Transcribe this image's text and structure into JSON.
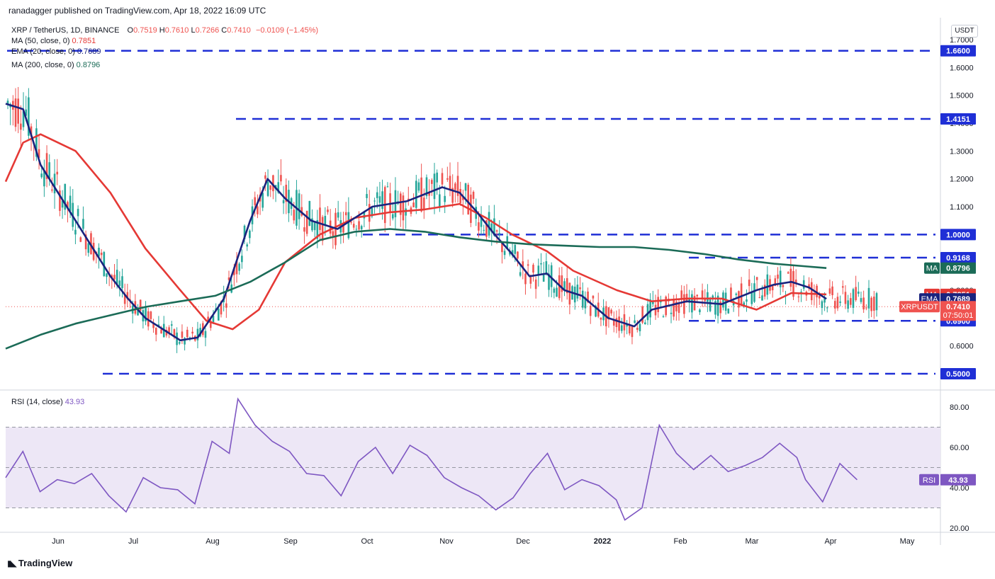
{
  "header": {
    "published": "ranadagger published on TradingView.com, Apr 18, 2022 16:09 UTC"
  },
  "legend": {
    "symbol": "XRP / TetherUS, 1D, BINANCE",
    "o_label": "O",
    "o_value": "0.7519",
    "h_label": "H",
    "h_value": "0.7610",
    "l_label": "L",
    "l_value": "0.7266",
    "c_label": "C",
    "c_value": "0.7410",
    "change": "−0.0109 (−1.45%)",
    "ma50_label": "MA (50, close, 0)",
    "ma50_value": "0.7851",
    "ema20_label": "EMA (20, close, 0)",
    "ema20_value": "0.7689",
    "ma200_label": "MA (200, close, 0)",
    "ma200_value": "0.8796",
    "rsi_label": "RSI (14, close)",
    "rsi_value": "43.93"
  },
  "currency_badge": "USDT",
  "footer": {
    "brand": "TradingView"
  },
  "colors": {
    "candle_up": "#26a69a",
    "candle_down": "#ef5350",
    "ema20": "#1a237e",
    "ma50": "#e53935",
    "ma200": "#1b6b57",
    "hline": "#1f2fd6",
    "rsi": "#7e57c2",
    "rsi_band": "#ede7f6"
  },
  "chart_data": [
    {
      "type": "candlestick",
      "title": "XRP / TetherUS, 1D, BINANCE",
      "x_tick_labels": [
        "Jun",
        "Jul",
        "Aug",
        "Sep",
        "Oct",
        "Nov",
        "Dec",
        "2022",
        "Feb",
        "Mar",
        "Apr",
        "May"
      ],
      "y_tick_labels": [
        "1.7000",
        "1.6000",
        "1.5000",
        "1.4000",
        "1.3000",
        "1.2000",
        "1.1000",
        "1.0000",
        "0.9000",
        "0.8000",
        "0.7000",
        "0.6000",
        "0.5000"
      ],
      "ylim": [
        0.45,
        1.73
      ],
      "scale": "linear",
      "grid": false,
      "ohlc_last": {
        "open": 0.7519,
        "high": 0.761,
        "low": 0.7266,
        "close": 0.741
      },
      "price_labels": [
        {
          "text": "1.6600",
          "value": 1.66,
          "kind": "level"
        },
        {
          "text": "1.4151",
          "value": 1.4151,
          "kind": "level"
        },
        {
          "text": "1.0000",
          "value": 1.0,
          "kind": "level"
        },
        {
          "text": "0.9168",
          "value": 0.9168,
          "kind": "level"
        },
        {
          "text": "0.6900",
          "value": 0.69,
          "kind": "level"
        },
        {
          "text": "0.5000",
          "value": 0.5,
          "kind": "level"
        },
        {
          "tag": "MA",
          "text": "0.8796",
          "value": 0.8796,
          "kind": "ma200"
        },
        {
          "tag": "MA",
          "text": "0.7851",
          "value": 0.7851,
          "kind": "ma50"
        },
        {
          "tag": "EMA",
          "text": "0.7689",
          "value": 0.7689,
          "kind": "ema20"
        },
        {
          "tag": "XRPUSDT",
          "text": "0.7410",
          "countdown": "07:50:01",
          "value": 0.741,
          "kind": "price"
        }
      ],
      "horizontal_levels": [
        {
          "value": 1.66,
          "from": "May 2021",
          "to": "May 2022"
        },
        {
          "value": 1.4151,
          "from": "Aug 2021",
          "to": "May 2022"
        },
        {
          "value": 1.0,
          "from": "Oct 2021",
          "to": "May 2022"
        },
        {
          "value": 0.9168,
          "from": "Feb 2022",
          "to": "May 2022"
        },
        {
          "value": 0.69,
          "from": "Feb 2022",
          "to": "May 2022"
        },
        {
          "value": 0.5,
          "from": "Jun 2021",
          "to": "May 2022"
        }
      ],
      "series": [
        {
          "name": "MA (50, close, 0)",
          "color": "#e53935",
          "last": 0.7851,
          "path": [
            [
              0,
              1.19
            ],
            [
              0.02,
              1.33
            ],
            [
              0.04,
              1.36
            ],
            [
              0.08,
              1.3
            ],
            [
              0.12,
              1.15
            ],
            [
              0.16,
              0.95
            ],
            [
              0.2,
              0.8
            ],
            [
              0.23,
              0.69
            ],
            [
              0.26,
              0.66
            ],
            [
              0.29,
              0.73
            ],
            [
              0.32,
              0.9
            ],
            [
              0.36,
              1.0
            ],
            [
              0.4,
              1.06
            ],
            [
              0.44,
              1.08
            ],
            [
              0.48,
              1.09
            ],
            [
              0.52,
              1.11
            ],
            [
              0.55,
              1.06
            ],
            [
              0.58,
              1.0
            ],
            [
              0.62,
              0.94
            ],
            [
              0.65,
              0.87
            ],
            [
              0.7,
              0.8
            ],
            [
              0.74,
              0.76
            ],
            [
              0.78,
              0.77
            ],
            [
              0.82,
              0.77
            ],
            [
              0.86,
              0.73
            ],
            [
              0.9,
              0.79
            ],
            [
              0.94,
              0.785
            ]
          ]
        },
        {
          "name": "EMA (20, close, 0)",
          "color": "#1a237e",
          "last": 0.7689,
          "path": [
            [
              0,
              1.47
            ],
            [
              0.02,
              1.45
            ],
            [
              0.04,
              1.25
            ],
            [
              0.08,
              1.05
            ],
            [
              0.1,
              0.95
            ],
            [
              0.12,
              0.85
            ],
            [
              0.14,
              0.77
            ],
            [
              0.16,
              0.7
            ],
            [
              0.18,
              0.66
            ],
            [
              0.2,
              0.62
            ],
            [
              0.22,
              0.63
            ],
            [
              0.25,
              0.77
            ],
            [
              0.28,
              1.05
            ],
            [
              0.3,
              1.2
            ],
            [
              0.32,
              1.13
            ],
            [
              0.35,
              1.05
            ],
            [
              0.38,
              1.02
            ],
            [
              0.42,
              1.1
            ],
            [
              0.46,
              1.12
            ],
            [
              0.5,
              1.17
            ],
            [
              0.52,
              1.15
            ],
            [
              0.54,
              1.08
            ],
            [
              0.56,
              1.0
            ],
            [
              0.58,
              0.93
            ],
            [
              0.6,
              0.85
            ],
            [
              0.62,
              0.86
            ],
            [
              0.64,
              0.8
            ],
            [
              0.66,
              0.78
            ],
            [
              0.69,
              0.7
            ],
            [
              0.72,
              0.67
            ],
            [
              0.74,
              0.73
            ],
            [
              0.78,
              0.76
            ],
            [
              0.82,
              0.75
            ],
            [
              0.86,
              0.8
            ],
            [
              0.88,
              0.82
            ],
            [
              0.9,
              0.83
            ],
            [
              0.92,
              0.81
            ],
            [
              0.94,
              0.769
            ]
          ]
        },
        {
          "name": "MA (200, close, 0)",
          "color": "#1b6b57",
          "last": 0.8796,
          "path": [
            [
              0,
              0.59
            ],
            [
              0.04,
              0.64
            ],
            [
              0.08,
              0.68
            ],
            [
              0.12,
              0.71
            ],
            [
              0.16,
              0.74
            ],
            [
              0.2,
              0.76
            ],
            [
              0.24,
              0.78
            ],
            [
              0.28,
              0.83
            ],
            [
              0.32,
              0.9
            ],
            [
              0.36,
              0.98
            ],
            [
              0.4,
              1.01
            ],
            [
              0.44,
              1.02
            ],
            [
              0.48,
              1.01
            ],
            [
              0.52,
              0.99
            ],
            [
              0.56,
              0.975
            ],
            [
              0.6,
              0.965
            ],
            [
              0.64,
              0.96
            ],
            [
              0.68,
              0.955
            ],
            [
              0.72,
              0.955
            ],
            [
              0.76,
              0.945
            ],
            [
              0.8,
              0.93
            ],
            [
              0.84,
              0.91
            ],
            [
              0.88,
              0.895
            ],
            [
              0.94,
              0.8796
            ]
          ]
        }
      ]
    },
    {
      "type": "line",
      "title": "RSI (14, close)",
      "name": "RSI",
      "last": 43.93,
      "ylim": [
        18,
        86
      ],
      "y_tick_labels": [
        "80.00",
        "60.00",
        "40.00",
        "20.00"
      ],
      "bands": {
        "upper": 70,
        "middle": 50,
        "lower": 30
      },
      "path": [
        [
          0,
          45
        ],
        [
          0.02,
          58
        ],
        [
          0.04,
          38
        ],
        [
          0.06,
          44
        ],
        [
          0.08,
          42
        ],
        [
          0.1,
          47
        ],
        [
          0.12,
          36
        ],
        [
          0.14,
          28
        ],
        [
          0.16,
          45
        ],
        [
          0.18,
          40
        ],
        [
          0.2,
          39
        ],
        [
          0.22,
          32
        ],
        [
          0.24,
          63
        ],
        [
          0.26,
          57
        ],
        [
          0.27,
          84
        ],
        [
          0.29,
          71
        ],
        [
          0.31,
          63
        ],
        [
          0.33,
          58
        ],
        [
          0.35,
          47
        ],
        [
          0.37,
          46
        ],
        [
          0.39,
          36
        ],
        [
          0.41,
          53
        ],
        [
          0.43,
          60
        ],
        [
          0.45,
          47
        ],
        [
          0.47,
          61
        ],
        [
          0.49,
          56
        ],
        [
          0.51,
          45
        ],
        [
          0.53,
          40
        ],
        [
          0.55,
          36
        ],
        [
          0.57,
          29
        ],
        [
          0.59,
          35
        ],
        [
          0.61,
          47
        ],
        [
          0.63,
          57
        ],
        [
          0.65,
          39
        ],
        [
          0.67,
          44
        ],
        [
          0.69,
          41
        ],
        [
          0.71,
          34
        ],
        [
          0.72,
          24
        ],
        [
          0.74,
          30
        ],
        [
          0.76,
          71
        ],
        [
          0.78,
          57
        ],
        [
          0.8,
          49
        ],
        [
          0.82,
          56
        ],
        [
          0.84,
          48
        ],
        [
          0.86,
          51
        ],
        [
          0.88,
          55
        ],
        [
          0.9,
          62
        ],
        [
          0.92,
          55
        ],
        [
          0.93,
          44
        ],
        [
          0.95,
          33
        ],
        [
          0.97,
          52
        ],
        [
          0.99,
          43.93
        ]
      ]
    }
  ]
}
